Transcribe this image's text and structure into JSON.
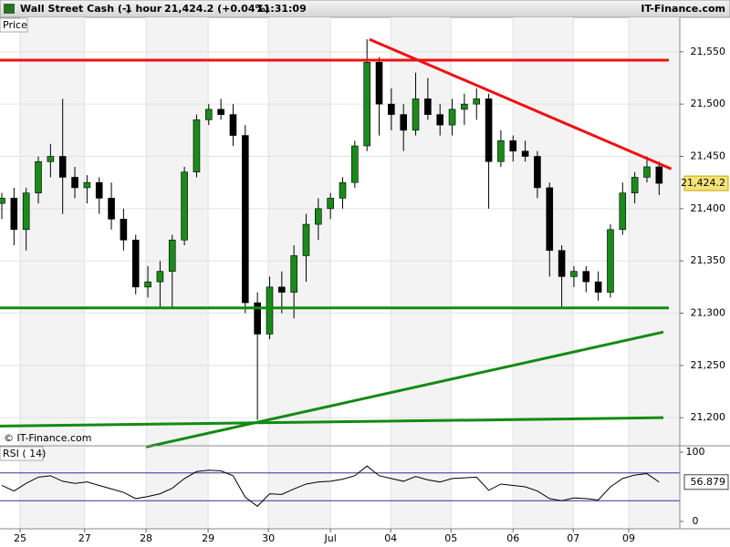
{
  "header": {
    "symbol": "Wall Street Cash (-)",
    "interval": "1 hour",
    "quote": "21,424.2 (+0.04%)",
    "time": "11:31:09",
    "site": "IT-Finance.com",
    "watermark": "© IT-Finance.com"
  },
  "chart_data": [
    {
      "type": "candlestick",
      "panel_label": "Price",
      "x": [
        -0.3,
        -0.1,
        0.1,
        0.3,
        0.5,
        0.7,
        0.9,
        1.1,
        1.3,
        1.5,
        1.7,
        1.9,
        2.1,
        2.3,
        2.5,
        2.7,
        2.9,
        3.1,
        3.3,
        3.5,
        3.7,
        3.9,
        4.1,
        4.3,
        4.5,
        4.7,
        4.9,
        5.1,
        5.3,
        5.5,
        5.7,
        5.9,
        6.1,
        6.3,
        6.5,
        6.7,
        6.9,
        7.1,
        7.3,
        7.5,
        7.7,
        7.9,
        8.1,
        8.3,
        8.5,
        8.7,
        8.9,
        9.1,
        9.3,
        9.5,
        9.7,
        9.9,
        10.1,
        10.3,
        10.5
      ],
      "open": [
        21405,
        21410,
        21380,
        21415,
        21445,
        21450,
        21430,
        21420,
        21425,
        21410,
        21390,
        21370,
        21325,
        21330,
        21340,
        21370,
        21435,
        21485,
        21495,
        21490,
        21470,
        21310,
        21280,
        21325,
        21320,
        21355,
        21385,
        21400,
        21410,
        21425,
        21460,
        21540,
        21500,
        21490,
        21475,
        21505,
        21490,
        21480,
        21495,
        21500,
        21505,
        21445,
        21465,
        21455,
        21450,
        21420,
        21360,
        21335,
        21340,
        21330,
        21320,
        21380,
        21415,
        21430,
        21440
      ],
      "high": [
        21415,
        21420,
        21420,
        21450,
        21462,
        21505,
        21440,
        21432,
        21430,
        21425,
        21400,
        21375,
        21345,
        21350,
        21375,
        21440,
        21490,
        21500,
        21505,
        21500,
        21480,
        21320,
        21335,
        21340,
        21365,
        21395,
        21410,
        21415,
        21430,
        21465,
        21562,
        21545,
        21515,
        21500,
        21530,
        21525,
        21500,
        21505,
        21510,
        21515,
        21510,
        21475,
        21470,
        21465,
        21455,
        21425,
        21365,
        21345,
        21345,
        21340,
        21385,
        21425,
        21435,
        21450,
        21445
      ],
      "low": [
        21390,
        21365,
        21360,
        21405,
        21430,
        21395,
        21410,
        21405,
        21395,
        21380,
        21360,
        21318,
        21315,
        21305,
        21305,
        21365,
        21430,
        21480,
        21485,
        21460,
        21300,
        21198,
        21275,
        21300,
        21295,
        21330,
        21370,
        21390,
        21400,
        21420,
        21455,
        21470,
        21475,
        21455,
        21470,
        21485,
        21470,
        21470,
        21480,
        21485,
        21400,
        21440,
        21445,
        21445,
        21410,
        21335,
        21305,
        21325,
        21320,
        21312,
        21315,
        21375,
        21405,
        21425,
        21413
      ],
      "close": [
        21410,
        21380,
        21415,
        21445,
        21450,
        21430,
        21420,
        21425,
        21410,
        21390,
        21370,
        21325,
        21330,
        21340,
        21370,
        21435,
        21485,
        21495,
        21490,
        21470,
        21310,
        21280,
        21325,
        21320,
        21355,
        21385,
        21400,
        21410,
        21425,
        21460,
        21540,
        21500,
        21490,
        21475,
        21505,
        21490,
        21480,
        21495,
        21500,
        21505,
        21445,
        21465,
        21455,
        21450,
        21420,
        21360,
        21335,
        21340,
        21330,
        21320,
        21380,
        21415,
        21430,
        21440,
        21424.2
      ],
      "up_color": "#1a8a1a",
      "down_color": "#000000",
      "last": {
        "value": 21424.2,
        "label": "21,424.2"
      },
      "lines": [
        {
          "color": "#ee1111",
          "x": [
            -0.33,
            10.66
          ],
          "values": [
            21542,
            21542
          ]
        },
        {
          "color": "#ee1111",
          "x": [
            5.74,
            10.7
          ],
          "values": [
            21562,
            21438
          ]
        },
        {
          "color": "#138a13",
          "x": [
            -0.33,
            10.66
          ],
          "values": [
            21305,
            21305
          ]
        },
        {
          "color": "#138a13",
          "x": [
            -0.33,
            10.57
          ],
          "values": [
            21192,
            21200
          ]
        },
        {
          "color": "#138a13",
          "x": [
            2.07,
            10.57
          ],
          "values": [
            21172,
            21282
          ]
        }
      ],
      "xlim": [
        -0.33,
        10.84
      ],
      "ylim": [
        21174,
        21583
      ],
      "yticks": [
        {
          "value": 21200,
          "label": "21,200"
        },
        {
          "value": 21250,
          "label": "21,250"
        },
        {
          "value": 21300,
          "label": "21,300"
        },
        {
          "value": 21350,
          "label": "21,350"
        },
        {
          "value": 21400,
          "label": "21,400"
        },
        {
          "value": 21450,
          "label": "21,450"
        },
        {
          "value": 21500,
          "label": "21,500"
        },
        {
          "value": 21550,
          "label": "21,550"
        }
      ],
      "xticks": [
        {
          "value": 0,
          "label": "25"
        },
        {
          "value": 1.06,
          "label": "27"
        },
        {
          "value": 2.07,
          "label": "28"
        },
        {
          "value": 3.09,
          "label": "29"
        },
        {
          "value": 4.08,
          "label": "30"
        },
        {
          "value": 5.1,
          "label": "Jul"
        },
        {
          "value": 6.09,
          "label": "04"
        },
        {
          "value": 7.08,
          "label": "05"
        },
        {
          "value": 8.1,
          "label": "06"
        },
        {
          "value": 9.09,
          "label": "07"
        },
        {
          "value": 10.0,
          "label": "09"
        }
      ],
      "grid": true
    },
    {
      "type": "line",
      "panel_label": "RSI ( 14)",
      "color": "#000000",
      "x": [
        -0.3,
        -0.1,
        0.1,
        0.3,
        0.5,
        0.7,
        0.9,
        1.1,
        1.3,
        1.5,
        1.7,
        1.9,
        2.1,
        2.3,
        2.5,
        2.7,
        2.9,
        3.1,
        3.3,
        3.5,
        3.7,
        3.9,
        4.1,
        4.3,
        4.5,
        4.7,
        4.9,
        5.1,
        5.3,
        5.5,
        5.7,
        5.9,
        6.1,
        6.3,
        6.5,
        6.7,
        6.9,
        7.1,
        7.3,
        7.5,
        7.7,
        7.9,
        8.1,
        8.3,
        8.5,
        8.7,
        8.9,
        9.1,
        9.3,
        9.5,
        9.7,
        9.9,
        10.1,
        10.3,
        10.5
      ],
      "values": [
        52,
        44,
        55,
        64,
        66,
        58,
        55,
        57,
        52,
        47,
        42,
        33,
        36,
        40,
        48,
        62,
        72,
        74,
        73,
        66,
        35,
        22,
        40,
        39,
        47,
        54,
        57,
        58,
        61,
        66,
        80,
        66,
        62,
        58,
        65,
        60,
        57,
        62,
        63,
        64,
        45,
        54,
        52,
        50,
        44,
        33,
        30,
        34,
        33,
        31,
        50,
        62,
        67,
        69,
        56.879
      ],
      "last": {
        "value": 56.879,
        "label": "56.879"
      },
      "levels": [
        {
          "value": 70,
          "color": "#33339a"
        },
        {
          "value": 30,
          "color": "#33339a"
        }
      ],
      "xlim": [
        -0.33,
        10.84
      ],
      "ylim": [
        0,
        100
      ],
      "yticks": [
        0,
        100
      ]
    }
  ]
}
